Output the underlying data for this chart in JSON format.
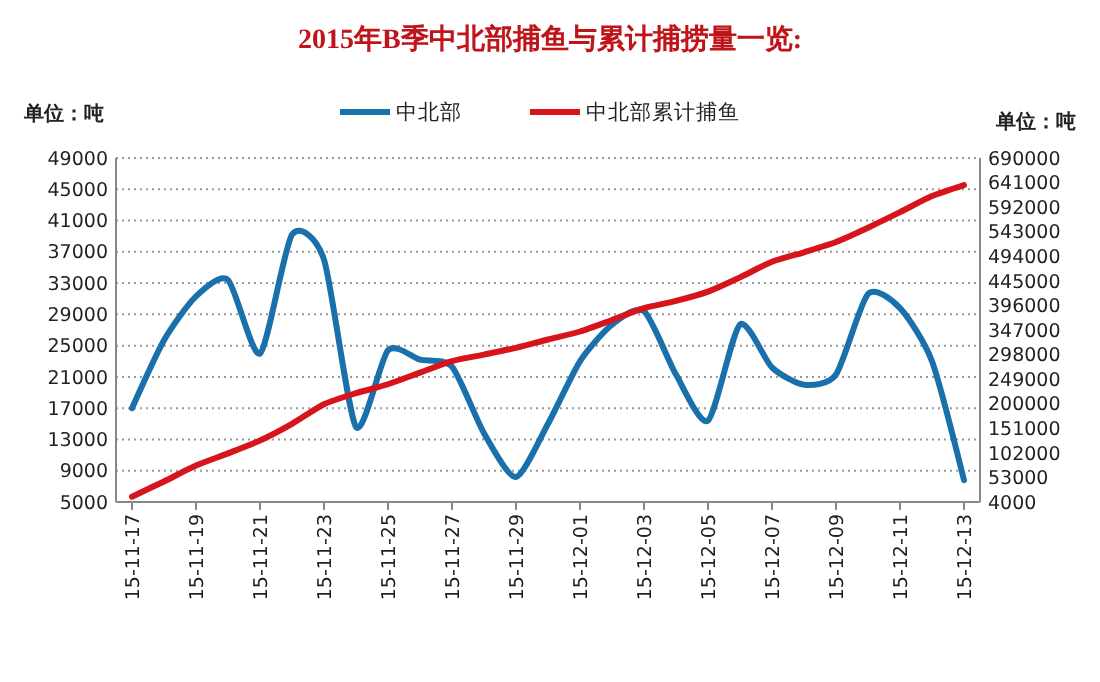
{
  "chart_data": {
    "type": "line",
    "title": "2015年B季中北部捕鱼与累计捕捞量一览:",
    "ylabel": "单位：吨",
    "y2label": "单位：吨",
    "categories": [
      "15-11-17",
      null,
      "15-11-19",
      null,
      "15-11-21",
      null,
      "15-11-23",
      null,
      "15-11-25",
      null,
      "15-11-27",
      null,
      "15-11-29",
      null,
      "15-12-01",
      null,
      "15-12-03",
      null,
      "15-12-05",
      null,
      "15-12-07",
      null,
      "15-12-09",
      null,
      "15-12-11",
      null,
      "15-12-13"
    ],
    "series": [
      {
        "name": "中北部",
        "color": "#1a70aa",
        "values": [
          17000,
          25700,
          31300,
          33400,
          24000,
          39200,
          36000,
          14600,
          24400,
          23200,
          22300,
          13800,
          8200,
          15000,
          23000,
          27700,
          29400,
          21300,
          15400,
          27700,
          22200,
          20000,
          21300,
          31600,
          29800,
          23000,
          7800
        ]
      },
      {
        "name": "中北部累计捕鱼",
        "color": "#d7141b",
        "axis": "y2",
        "values": [
          14600,
          45000,
          76600,
          101000,
          126700,
          160000,
          199000,
          221000,
          238800,
          262000,
          285000,
          298000,
          311400,
          328000,
          344000,
          367000,
          390600,
          405000,
          423500,
          452000,
          483000,
          502000,
          522500,
          551000,
          582000,
          614000,
          636000
        ]
      }
    ],
    "ylim": [
      5000,
      49000
    ],
    "yticks": [
      5000,
      9000,
      13000,
      17000,
      21000,
      25000,
      29000,
      33000,
      37000,
      41000,
      45000,
      49000
    ],
    "y2lim": [
      4000,
      690000
    ],
    "y2ticks": [
      4000,
      53000,
      102000,
      151000,
      200000,
      249000,
      298000,
      347000,
      396000,
      445000,
      494000,
      543000,
      592000,
      641000,
      690000
    ],
    "grid": "y",
    "legend": "top",
    "line_style": "solid",
    "marker": "none"
  }
}
